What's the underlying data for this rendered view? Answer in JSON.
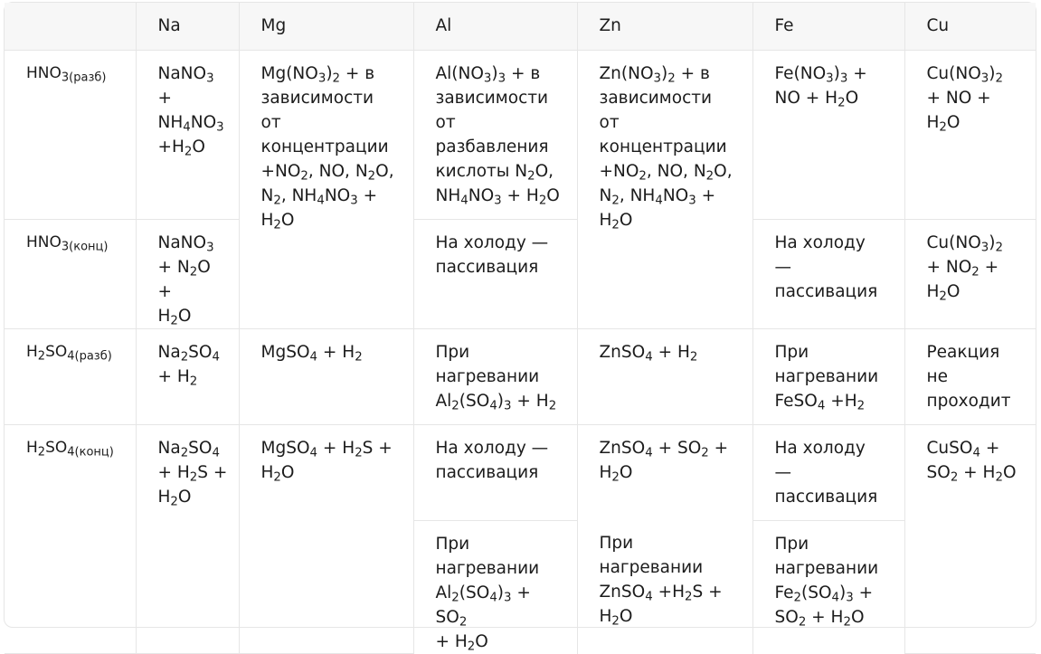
{
  "headers": [
    "",
    "Na",
    "Mg",
    "Al",
    "Zn",
    "Fe",
    "Cu"
  ],
  "acids": [
    "HNO_{3(разб)}",
    "HNO_{3(конц)}",
    "H_{2}SO_{4(разб)}",
    "H_{2}SO_{4(конц)}"
  ],
  "cells": {
    "hno3_dil_na": "NaNO_{3}\n+\nNH_{4}NO_{3}\n+H_{2}O",
    "hno3_mg": "Mg(NO_{3})_{2} + в\nзависимости\nот\nконцентрации\n+NO_{2}, NO, N_{2}O,\nN_{2}, NH_{4}NO_{3} +\nH_{2}O",
    "hno3_dil_al": "Al(NO_{3})_{3} + в\nзависимости\nот\nразбавления\nкислоты N_{2}O,\nNH_{4}NO_{3} + H_{2}O",
    "hno3_zn": "Zn(NO_{3})_{2} + в\nзависимости\nот\nконцентрации\n+NO_{2}, NO, N_{2}O,\nN_{2}, NH_{4}NO_{3} +\nH_{2}O",
    "hno3_dil_fe": "Fe(NO_{3})_{3} +\nNO + H_{2}O",
    "hno3_dil_cu": "Cu(NO_{3})_{2}\n+ NO + H_{2}O",
    "hno3_conc_na": "NaNO_{3}\n+ N_{2}O +\nH_{2}O",
    "hno3_conc_al": "На холоду —\nпассивация",
    "hno3_conc_fe": "На холоду\n—\nпассивация",
    "hno3_conc_cu": "Cu(NO_{3})_{2}\n+ NO_{2} +\nH_{2}O",
    "h2so4_dil_na": "Na_{2}SO_{4}\n+ H_{2}",
    "h2so4_dil_mg": "MgSO_{4} + H_{2}",
    "h2so4_dil_al": "При\nнагревании\nAl_{2}(SO_{4})_{3} + H_{2}",
    "h2so4_dil_zn": "ZnSO_{4} + H_{2}",
    "h2so4_dil_fe": "При\nнагревании\nFeSO_{4} +H_{2}",
    "h2so4_dil_cu": "Реакция\nне\nпроходит",
    "h2so4_conc_na": "Na_{2}SO_{4}\n+ H_{2}S +\nH_{2}O",
    "h2so4_conc_mg": "MgSO_{4} + H_{2}S +\nH_{2}O",
    "h2so4_conc_al_cold": "На холоду —\nпассивация",
    "h2so4_conc_zn": "ZnSO_{4} + SO_{2} +\nH_{2}O",
    "h2so4_conc_fe_cold": "На холоду\n—\nпассивация",
    "h2so4_conc_cu": "CuSO_{4} +\nSO_{2} + H_{2}O",
    "h2so4_conc_al_hot": "При\nнагревании\nAl_{2}(SO_{4})_{3} + SO_{2}\n+ H_{2}O",
    "h2so4_conc_zn_hot": "При\nнагревании\nZnSO_{4} +H_{2}S +\nH_{2}O",
    "h2so4_conc_fe_hot": "При\nнагревании\nFe_{2}(SO_{4})_{3} +\nSO_{2} + H_{2}O"
  }
}
